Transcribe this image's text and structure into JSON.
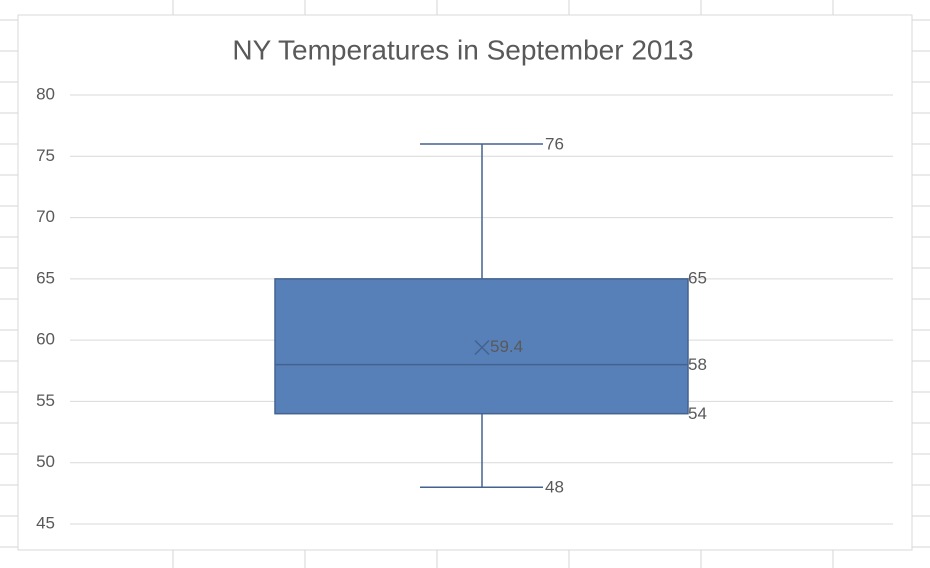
{
  "chart_data": {
    "type": "box",
    "title": "NY Temperatures in September 2013",
    "ylim": [
      45,
      80
    ],
    "yticks": [
      45,
      50,
      55,
      60,
      65,
      70,
      75,
      80
    ],
    "grid": true,
    "series": [
      {
        "color": "#5880b8",
        "min": 48,
        "q1": 54,
        "median": 58,
        "q3": 65,
        "max": 76,
        "mean": 59.4
      }
    ]
  }
}
